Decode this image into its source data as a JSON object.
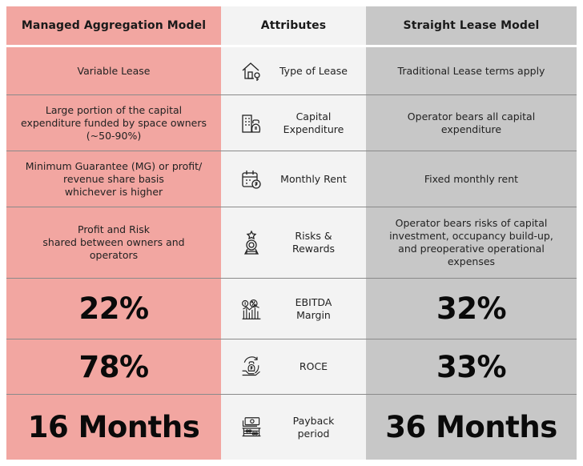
{
  "headers": {
    "left": "Managed Aggregation Model",
    "middle": "Attributes",
    "right": "Straight Lease Model"
  },
  "rows": [
    {
      "icon": "house-key-icon",
      "attribute": "Type of Lease",
      "left": "Variable Lease",
      "right": "Traditional Lease terms apply"
    },
    {
      "icon": "building-money-icon",
      "attribute": "Capital\nExpenditure",
      "left": "Large portion of the capital\nexpenditure funded by space owners\n(~50-90%)",
      "right": "Operator bears all capital\nexpenditure"
    },
    {
      "icon": "calendar-coin-icon",
      "attribute": "Monthly Rent",
      "left": "Minimum Guarantee (MG) or profit/\nrevenue share basis\nwhichever is higher",
      "right": "Fixed monthly rent"
    },
    {
      "icon": "award-medal-icon",
      "attribute": "Risks &\nRewards",
      "left": "Profit and Risk\nshared between owners and\noperators",
      "right": "Operator bears risks of capital\ninvestment, occupancy build-up,\nand preoperative operational\nexpenses"
    },
    {
      "icon": "bar-chart-percent-icon",
      "attribute": "EBITDA\nMargin",
      "left": "22%",
      "right": "32%"
    },
    {
      "icon": "hand-rupee-bag-icon",
      "attribute": "ROCE",
      "left": "78%",
      "right": "33%"
    },
    {
      "icon": "cash-abacus-icon",
      "attribute": "Payback\nperiod",
      "left": "16 Months",
      "right": "36 Months"
    }
  ]
}
